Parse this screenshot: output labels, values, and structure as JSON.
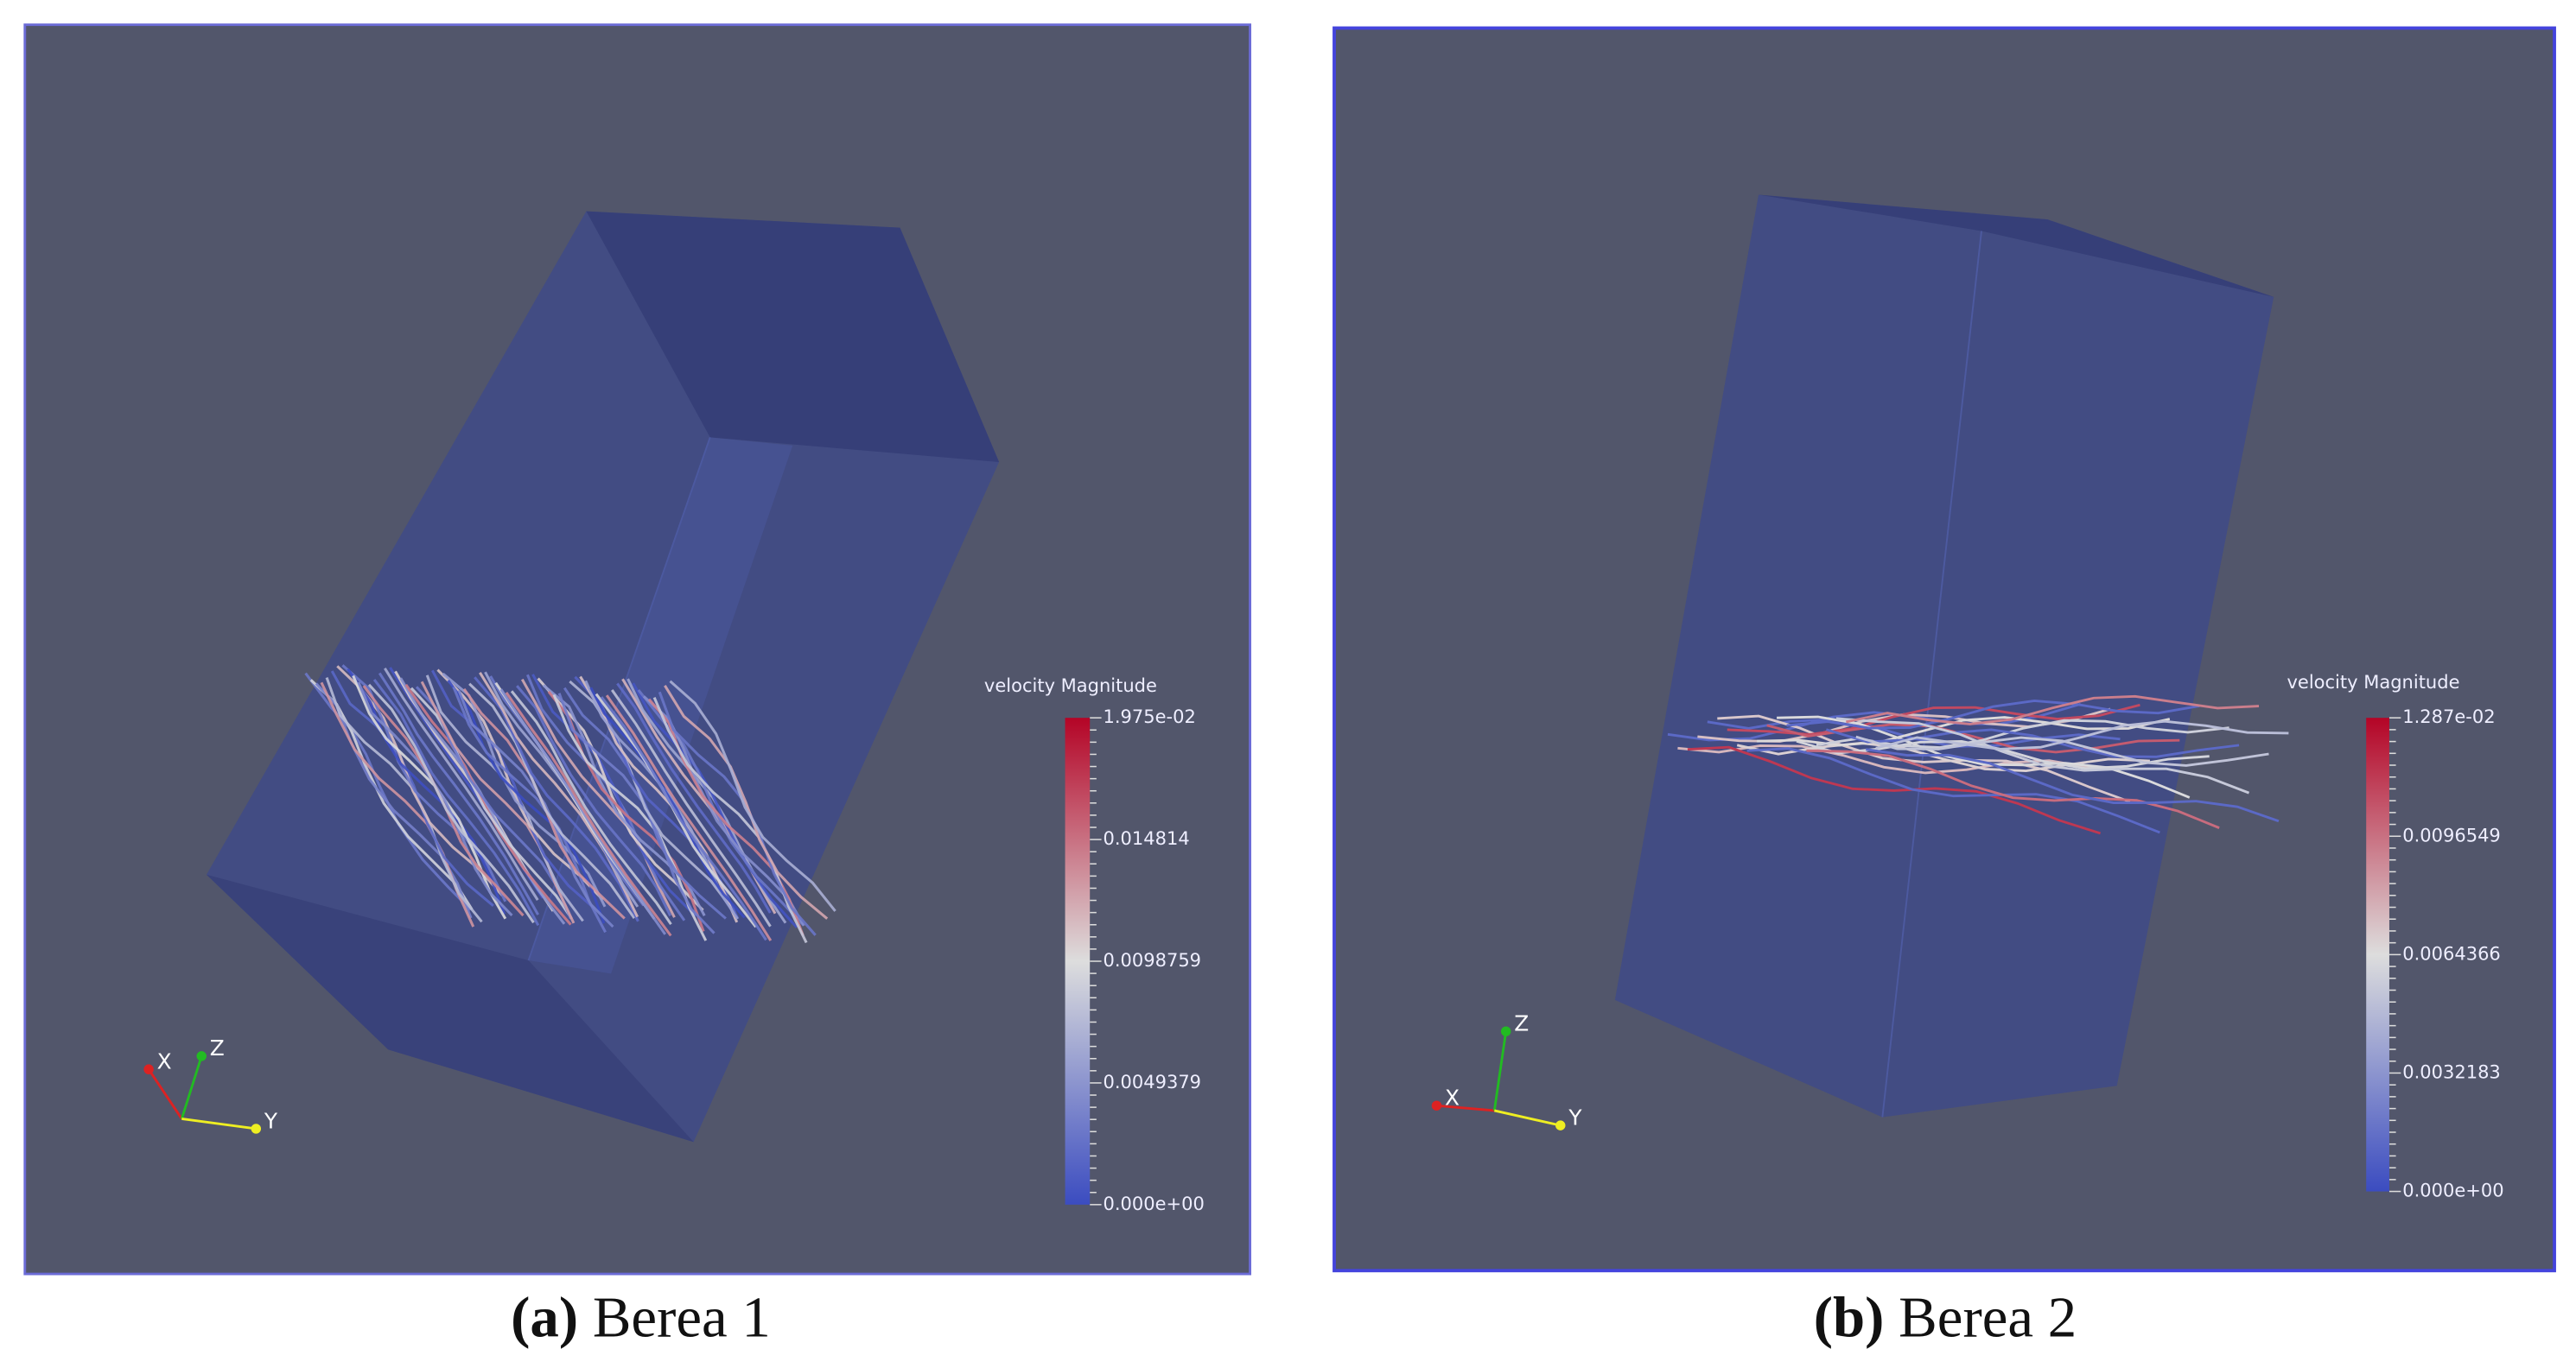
{
  "panels": [
    {
      "caption": {
        "label": "(a)",
        "text": "Berea 1"
      },
      "colorbar": {
        "title": "velocity Magnitude",
        "ticks": [
          "1.975e-02",
          "0.014814",
          "0.0098759",
          "0.0049379",
          "0.000e+00"
        ]
      },
      "axes": {
        "x": "X",
        "y": "Y",
        "z": "Z"
      }
    },
    {
      "caption": {
        "label": "(b)",
        "text": "Berea 2"
      },
      "colorbar": {
        "title": "velocity Magnitude",
        "ticks": [
          "1.287e-02",
          "0.0096549",
          "0.0064366",
          "0.0032183",
          "0.000e+00"
        ]
      },
      "axes": {
        "x": "X",
        "y": "Y",
        "z": "Z"
      }
    }
  ]
}
